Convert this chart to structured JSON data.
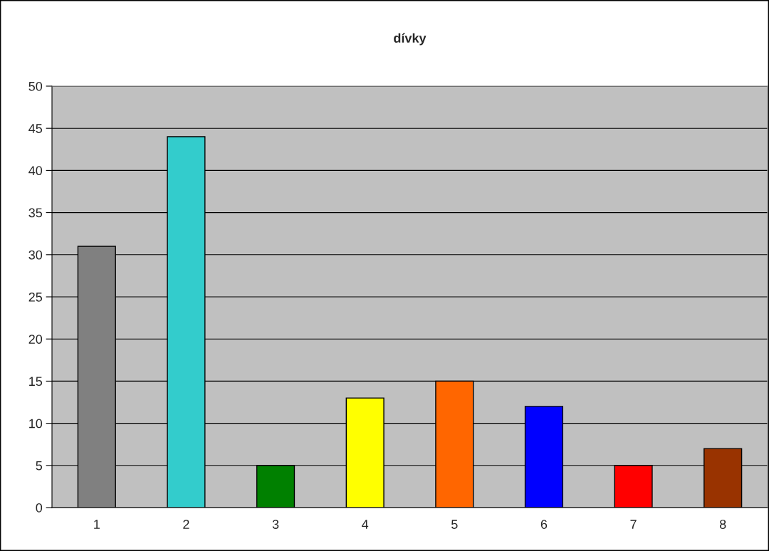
{
  "chart_data": {
    "type": "bar",
    "title": "dívky",
    "categories": [
      "1",
      "2",
      "3",
      "4",
      "5",
      "6",
      "7",
      "8"
    ],
    "values": [
      31,
      44,
      5,
      13,
      15,
      12,
      5,
      7
    ],
    "colors": [
      "#808080",
      "#33cccc",
      "#008000",
      "#ffff00",
      "#ff6600",
      "#0000ff",
      "#ff0000",
      "#993300"
    ],
    "ylim": [
      0,
      50
    ],
    "yticks": [
      0,
      5,
      10,
      15,
      20,
      25,
      30,
      35,
      40,
      45,
      50
    ],
    "grid": "y",
    "legend": false
  }
}
